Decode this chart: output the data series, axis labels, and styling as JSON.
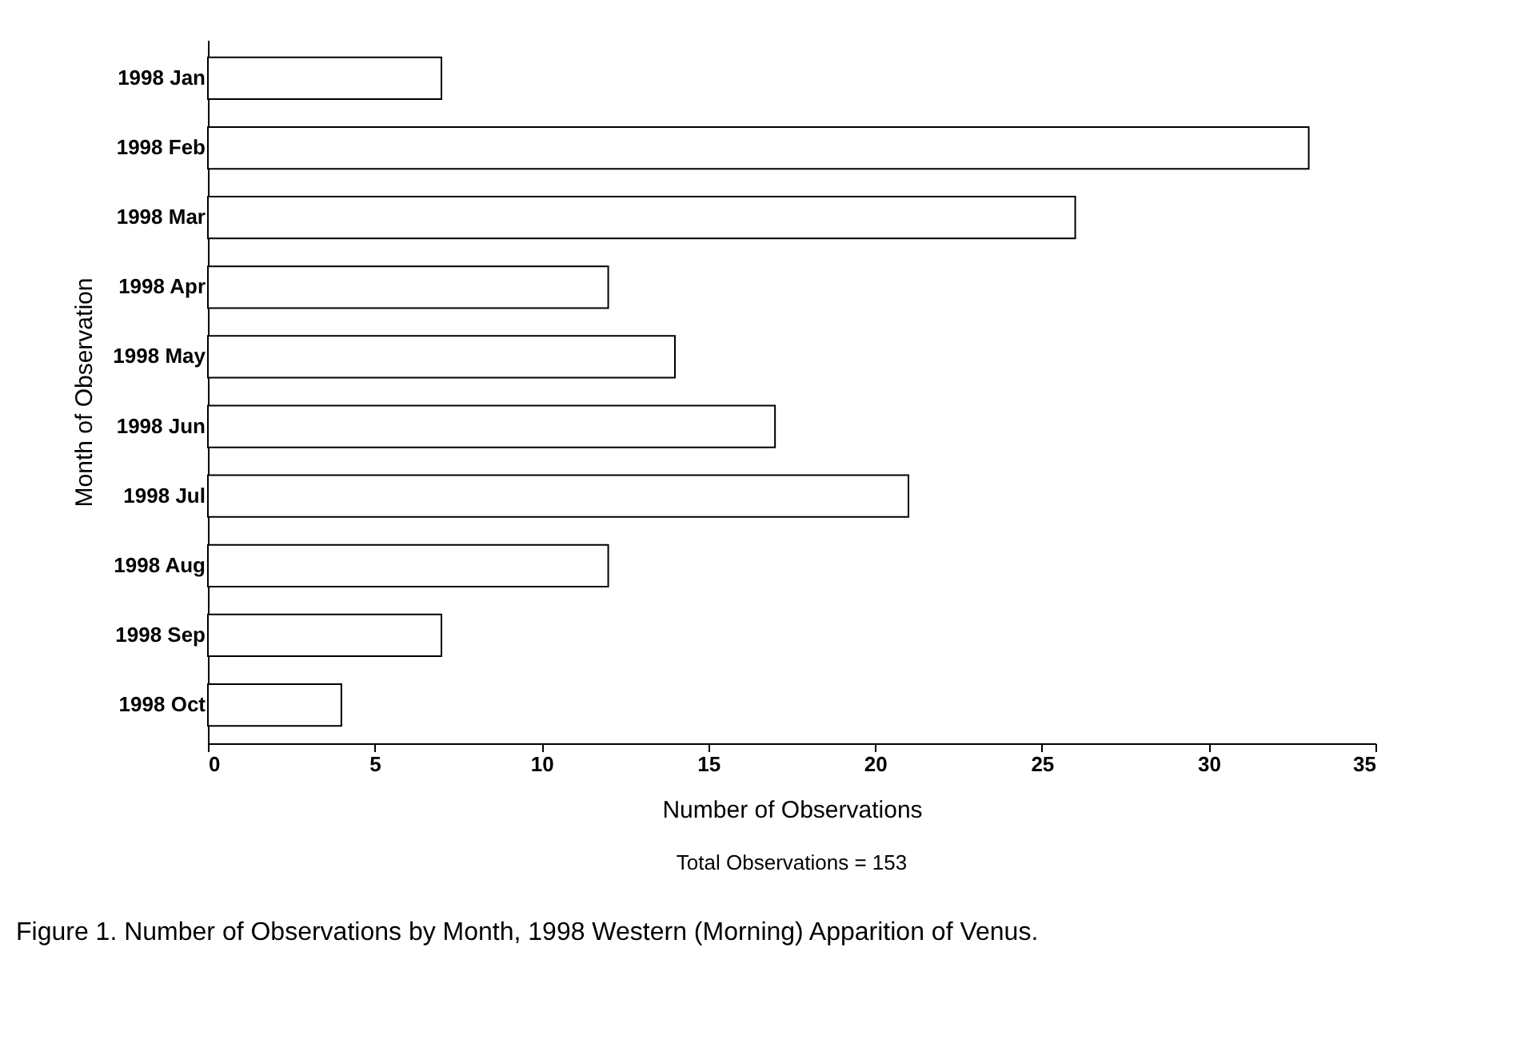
{
  "chart_data": {
    "type": "bar",
    "orientation": "horizontal",
    "xlabel": "Number of Observations",
    "ylabel": "Month of Observation",
    "categories": [
      "1998 Jan",
      "1998 Feb",
      "1998 Mar",
      "1998 Apr",
      "1998 May",
      "1998 Jun",
      "1998 Jul",
      "1998 Aug",
      "1998 Sep",
      "1998 Oct"
    ],
    "values": [
      7,
      33,
      26,
      12,
      14,
      17,
      21,
      12,
      7,
      4
    ],
    "color": "#ffffff",
    "xlim": [
      0,
      35
    ],
    "xticks": [
      0,
      5,
      10,
      15,
      20,
      25,
      30,
      35
    ],
    "grid": false,
    "annotations": [
      "Total Observations = 153",
      "Figure 1. Number of Observations by Month, 1998 Western (Morning) Apparition of Venus."
    ]
  }
}
